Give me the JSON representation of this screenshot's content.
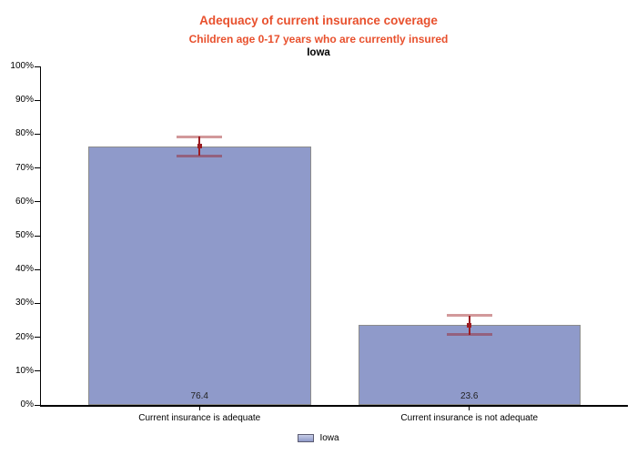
{
  "header": {
    "title": "Adequacy of current insurance coverage",
    "subtitle": "Children age 0-17 years who are currently insured",
    "region": "Iowa"
  },
  "legend": {
    "items": [
      {
        "label": "Iowa",
        "swatch_color": "#8F9ACA"
      }
    ],
    "position": "bottom"
  },
  "colors": {
    "title": "#E8502D",
    "bar_fill": "#8F9ACA",
    "bar_border": "#8C8C8C",
    "error": "#9B1C22",
    "axis": "#000000",
    "text": "#000000"
  },
  "chart_data": {
    "type": "bar",
    "title": "Adequacy of current insurance coverage",
    "subtitle": "Children age 0-17 years who are currently insured",
    "region": "Iowa",
    "categories": [
      "Current insurance is adequate",
      "Current insurance is not adequate"
    ],
    "series": [
      {
        "name": "Iowa",
        "values": [
          76.4,
          23.6
        ],
        "ci_low": [
          73.6,
          20.8
        ],
        "ci_high": [
          79.2,
          26.4
        ]
      }
    ],
    "value_labels": [
      "76.4",
      "23.6"
    ],
    "xlabel": "",
    "ylabel": "",
    "ylim": [
      0,
      100
    ],
    "yticks": [
      0,
      10,
      20,
      30,
      40,
      50,
      60,
      70,
      80,
      90,
      100
    ],
    "ytick_suffix": "%",
    "grid": false,
    "legend_position": "bottom"
  }
}
